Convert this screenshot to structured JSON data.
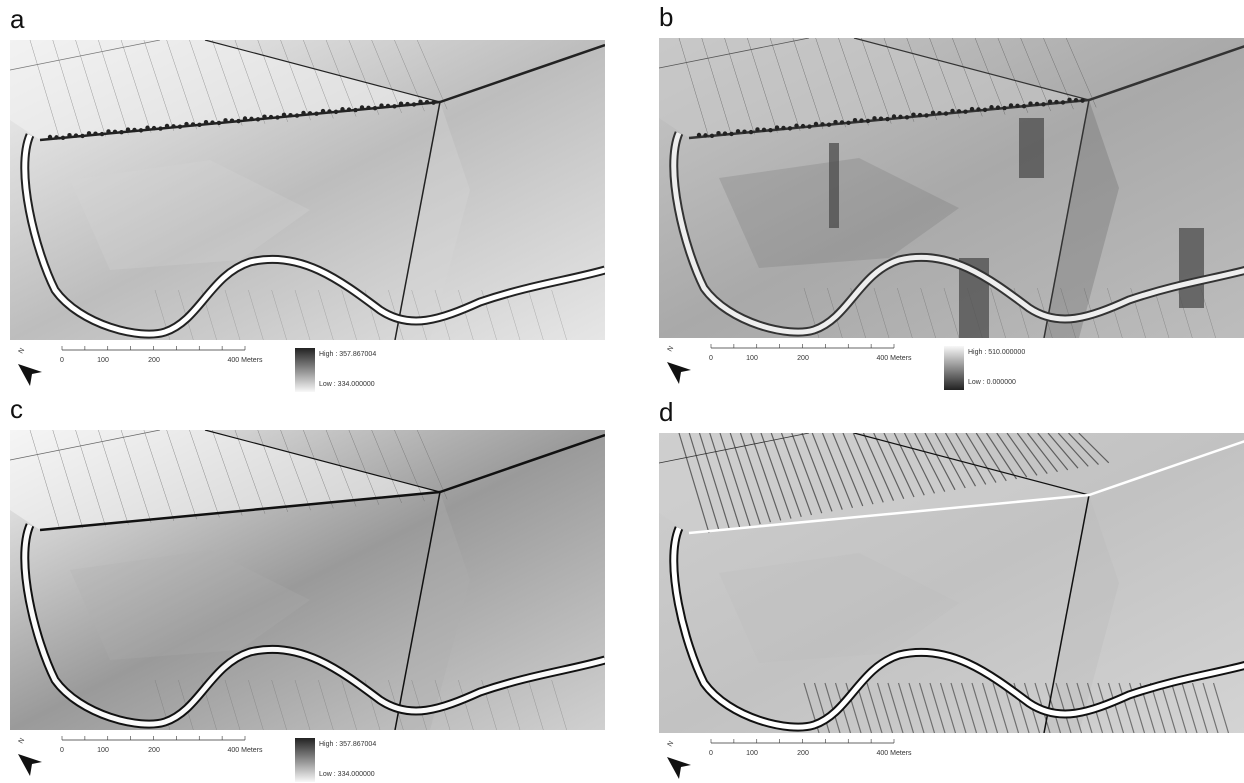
{
  "panels": [
    {
      "label": "a",
      "north": "N",
      "scale_labels": [
        "0",
        "100",
        "200",
        "400 Meters"
      ],
      "legend": {
        "high": "High : 357.867004",
        "low": "Low : 334.000000"
      }
    },
    {
      "label": "b",
      "north": "N",
      "scale_labels": [
        "0",
        "100",
        "200",
        "400 Meters"
      ],
      "legend": {
        "high": "High : 510.000000",
        "low": "Low : 0.000000"
      }
    },
    {
      "label": "c",
      "north": "N",
      "scale_labels": [
        "0",
        "100",
        "200",
        "400 Meters"
      ],
      "legend": {
        "high": "High : 357.867004",
        "low": "Low : 334.000000"
      }
    },
    {
      "label": "d",
      "north": "N",
      "scale_labels": [
        "0",
        "100",
        "200",
        "400 Meters"
      ]
    }
  ]
}
